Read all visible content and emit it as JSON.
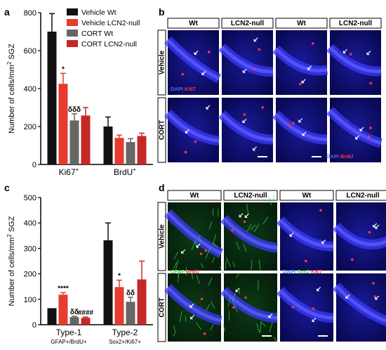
{
  "figure": {
    "panel_letters": [
      "a",
      "b",
      "c",
      "d"
    ],
    "legend": {
      "entries": [
        {
          "label": "Vehicle Wt",
          "color": "#111111"
        },
        {
          "label": "Vehicle LCN2-null",
          "color": "#e63b2e"
        },
        {
          "label": "CORT Wt",
          "color": "#666666"
        },
        {
          "label": "CORT LCN2-null",
          "color": "#c62828"
        }
      ]
    },
    "panel_b": {
      "column_headers": [
        "Wt",
        "LCN2-null",
        "Wt",
        "LCN2-null"
      ],
      "row_labels": [
        "Vehicle",
        "CORT"
      ],
      "stain_labels": [
        {
          "text": "DAPI",
          "color": "#4d6bff"
        },
        {
          "text": "Ki67",
          "color": "#ff3344"
        },
        {
          "text": "DAPI",
          "color": "#4d6bff"
        },
        {
          "text": "BrdU",
          "color": "#ff3344"
        }
      ]
    },
    "panel_d": {
      "column_headers": [
        "Wt",
        "LCN2-null",
        "Wt",
        "LCN2-null"
      ],
      "row_labels": [
        "Vehicle",
        "CORT"
      ],
      "stain_labels": [
        {
          "text": "GFAP",
          "color": "#33dd33"
        },
        {
          "text": "BrdU",
          "color": "#ff3344"
        },
        {
          "text": "DAPI",
          "color": "#4d6bff"
        },
        {
          "text": "Sox2",
          "color": "#33dd33"
        },
        {
          "text": "Ki67",
          "color": "#ff3344"
        }
      ]
    }
  },
  "chart_data": [
    {
      "panel": "a",
      "type": "bar",
      "ylabel_parts": [
        "Number of cells/mm",
        "2",
        " SGZ"
      ],
      "ylim": [
        0,
        800
      ],
      "yticks": [
        0,
        200,
        400,
        600,
        800
      ],
      "categories": [
        {
          "label": "Ki67",
          "sup": "+"
        },
        {
          "label": "BrdU",
          "sup": "+"
        }
      ],
      "series": [
        {
          "name": "Vehicle Wt",
          "color": "#111111",
          "values": [
            700,
            200
          ],
          "errors": [
            95,
            50
          ]
        },
        {
          "name": "Vehicle LCN2-null",
          "color": "#e63b2e",
          "values": [
            425,
            140
          ],
          "errors": [
            55,
            15
          ]
        },
        {
          "name": "CORT Wt",
          "color": "#666666",
          "values": [
            232,
            118
          ],
          "errors": [
            35,
            18
          ]
        },
        {
          "name": "CORT LCN2-null",
          "color": "#c62828",
          "values": [
            258,
            150
          ],
          "errors": [
            42,
            15
          ]
        }
      ],
      "annotations": [
        {
          "text": "*",
          "category": 0,
          "series": 1
        },
        {
          "text": "δδδ",
          "category": 0,
          "series": 2
        }
      ]
    },
    {
      "panel": "c",
      "type": "bar",
      "ylabel_parts": [
        "Number of cells/mm",
        "2",
        " SGZ"
      ],
      "ylim": [
        0,
        500
      ],
      "yticks": [
        0,
        100,
        200,
        300,
        400,
        500
      ],
      "categories": [
        {
          "label": "Type-1",
          "sublabel": "GFAP+/BrdU+"
        },
        {
          "label": "Type-2",
          "sublabel": "Sox2+/Ki67+"
        }
      ],
      "series": [
        {
          "name": "Vehicle Wt",
          "color": "#111111",
          "values": [
            65,
            332
          ],
          "errors": [
            0,
            68
          ]
        },
        {
          "name": "Vehicle LCN2-null",
          "color": "#e63b2e",
          "values": [
            118,
            148
          ],
          "errors": [
            8,
            27
          ]
        },
        {
          "name": "CORT Wt",
          "color": "#666666",
          "values": [
            30,
            90
          ],
          "errors": [
            3,
            18
          ]
        },
        {
          "name": "CORT LCN2-null",
          "color": "#c62828",
          "values": [
            27,
            178
          ],
          "errors": [
            3,
            72
          ]
        }
      ],
      "annotations": [
        {
          "text": "****",
          "category": 0,
          "series": 1
        },
        {
          "text": "δδ",
          "category": 0,
          "series": 2
        },
        {
          "text": "####",
          "category": 0,
          "series": 3
        },
        {
          "text": "*",
          "category": 1,
          "series": 1
        },
        {
          "text": "δδ",
          "category": 1,
          "series": 2
        }
      ]
    }
  ]
}
